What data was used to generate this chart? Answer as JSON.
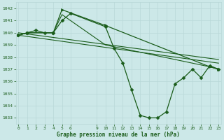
{
  "background_color": "#cce8e8",
  "grid_color": "#b8d8d8",
  "line_color": "#1a5c1a",
  "text_color": "#1a5c1a",
  "xlabel": "Graphe pression niveau de la mer (hPa)",
  "ylim": [
    1032.5,
    1042.5
  ],
  "yticks": [
    1033,
    1034,
    1035,
    1036,
    1037,
    1038,
    1039,
    1040,
    1041,
    1042
  ],
  "xticks": [
    0,
    1,
    2,
    3,
    4,
    5,
    6,
    9,
    10,
    11,
    12,
    13,
    14,
    15,
    16,
    17,
    18,
    19,
    20,
    21,
    22,
    23
  ],
  "xlim": [
    -0.3,
    23.3
  ],
  "series": [
    {
      "x": [
        0,
        1,
        2,
        3,
        4,
        5,
        6,
        10,
        11,
        12,
        13,
        14,
        15,
        16,
        17,
        18,
        19,
        20,
        21,
        22,
        23
      ],
      "y": [
        1039.8,
        1040.0,
        1040.2,
        1040.0,
        1040.0,
        1041.0,
        1041.6,
        1040.5,
        1038.7,
        1037.5,
        1035.3,
        1033.2,
        1033.0,
        1033.0,
        1033.5,
        1035.8,
        1036.3,
        1037.0,
        1036.3,
        1037.3,
        1037.0
      ],
      "marker": "D",
      "markersize": 2.5,
      "linewidth": 0.9
    },
    {
      "x": [
        0,
        1,
        4,
        5,
        10,
        22,
        23
      ],
      "y": [
        1039.8,
        1040.0,
        1040.0,
        1041.9,
        1040.6,
        1037.2,
        1037.0
      ],
      "marker": ">",
      "markersize": 3,
      "linewidth": 0.9
    },
    {
      "x": [
        0,
        1,
        4,
        5,
        10,
        22,
        23
      ],
      "y": [
        1039.8,
        1040.0,
        1040.0,
        1041.5,
        1039.0,
        1037.2,
        1037.0
      ],
      "marker": "",
      "markersize": 0,
      "linewidth": 0.8
    },
    {
      "x": [
        0,
        23
      ],
      "y": [
        1040.0,
        1037.8
      ],
      "marker": "",
      "markersize": 0,
      "linewidth": 0.8
    },
    {
      "x": [
        0,
        23
      ],
      "y": [
        1039.8,
        1037.5
      ],
      "marker": "",
      "markersize": 0,
      "linewidth": 0.8
    }
  ]
}
